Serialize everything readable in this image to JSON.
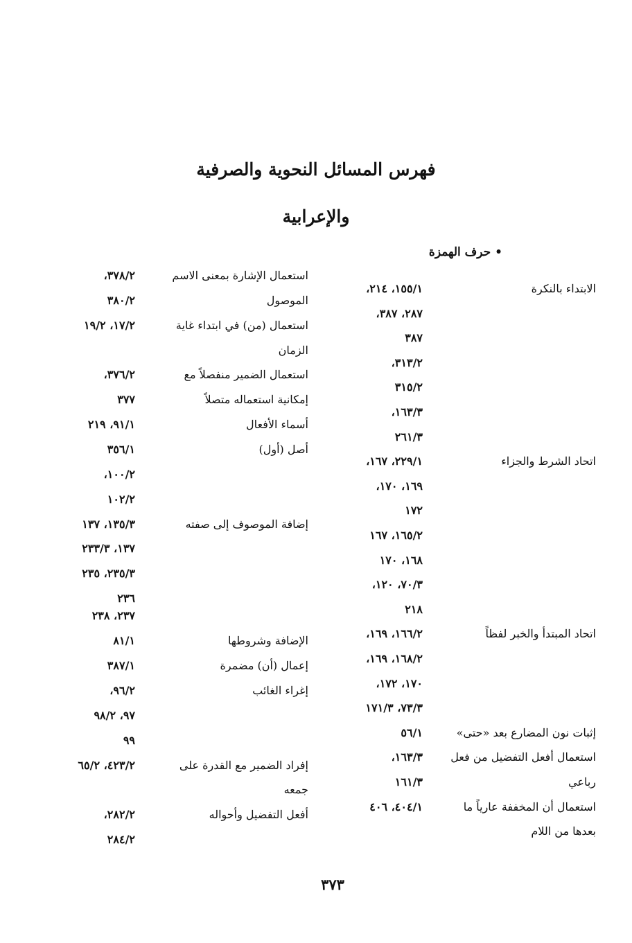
{
  "title_line1": "فهرس المسائل النحوية والصرفية",
  "title_line2": "والإعرابية",
  "section_marker": "•",
  "section_heading": "حرف الهمزة",
  "right_column": [
    {
      "label": "الابتداء بالنكرة",
      "refs": "١٥٥/١، ٢١٤،"
    },
    {
      "label": "",
      "refs": "٢٨٧، ٣٨٧،"
    },
    {
      "label": "",
      "refs": "٣٨٧"
    },
    {
      "label": "",
      "refs": "٣١٣/٢،"
    },
    {
      "label": "",
      "refs": "٣١٥/٢"
    },
    {
      "label": "",
      "refs": "١٦٣/٣،"
    },
    {
      "label": "",
      "refs": "٢٦١/٣"
    },
    {
      "label": "اتحاد الشرط والجزاء",
      "refs": "٢٢٩/١، ١٦٧،"
    },
    {
      "label": "",
      "refs": "١٦٩، ١٧٠،"
    },
    {
      "label": "",
      "refs": "١٧٢"
    },
    {
      "label": "",
      "refs": "١٦٥/٢، ١٦٧"
    },
    {
      "label": "",
      "refs": "١٦٨، ١٧٠"
    },
    {
      "label": "",
      "refs": "٧٠/٣، ١٢٠،"
    },
    {
      "label": "",
      "refs": "٢١٨"
    },
    {
      "label": "اتحاد المبتدأ والخبر لفظاً",
      "refs": "١٦٦/٢، ١٦٩،"
    },
    {
      "label": "",
      "refs": "١٦٨/٢، ١٦٩،"
    },
    {
      "label": "",
      "refs": "١٧٠، ١٧٢،"
    },
    {
      "label": "",
      "refs": "٧٣/٣، ١٧١/٣"
    },
    {
      "label": "إثبات نون المضارع بعد «حتى»",
      "refs": "٥٦/١"
    },
    {
      "label": "استعمال أفعل التفضيل من فعل",
      "refs": "١٦٣/٣،"
    },
    {
      "label": "رباعي",
      "refs": "١٦١/٣"
    },
    {
      "label": "استعمال أن المخففة عارياً ما",
      "refs": "٤٠٤/١، ٤٠٦"
    },
    {
      "label": "بعدها من اللام",
      "refs": ""
    }
  ],
  "left_column": [
    {
      "label": "استعمال الإشارة بمعنى الاسم",
      "refs": "٣٧٨/٢،"
    },
    {
      "label": "الموصول",
      "refs": "٣٨٠/٢"
    },
    {
      "label": "استعمال (من) في ابتداء غاية",
      "refs": "١٧/٢، ١٩/٢"
    },
    {
      "label": "الزمان",
      "refs": ""
    },
    {
      "label": "استعمال الضمير منفصلاً مع",
      "refs": "٣٧٦/٢،"
    },
    {
      "label": "إمكانية استعماله متصلاً",
      "refs": "٣٧٧"
    },
    {
      "label": "أسماء الأفعال",
      "refs": "٩١/١، ٢١٩"
    },
    {
      "label": "أصل (أول)",
      "refs": "٣٥٦/١"
    },
    {
      "label": "",
      "refs": "١٠٠/٢،"
    },
    {
      "label": "",
      "refs": "١٠٢/٢"
    },
    {
      "label": "إضافة الموصوف إلى صفته",
      "refs": "١٣٥/٣، ١٣٧"
    },
    {
      "label": "",
      "refs": "١٣٧، ٢٣٣/٣"
    },
    {
      "label": "",
      "refs": "٢٣٥/٣، ٢٣٥"
    },
    {
      "label": "",
      "refs": "٢٣٦"
    },
    {
      "label": "",
      "refs": "٢٣٧، ٢٣٨"
    },
    {
      "label": "الإضافة وشروطها",
      "refs": "٨١/١"
    },
    {
      "label": "إعمال (أن) مضمرة",
      "refs": "٣٨٧/١"
    },
    {
      "label": "إغراء الغائب",
      "refs": "٩٦/٢،"
    },
    {
      "label": "",
      "refs": "٩٧، ٩٨/٢"
    },
    {
      "label": "",
      "refs": "٩٩"
    },
    {
      "label": "إفراد الضمير مع القدرة على",
      "refs": "٤٢٣/٢، ٦٥/٢"
    },
    {
      "label": "جمعه",
      "refs": ""
    },
    {
      "label": "أفعل التفضيل وأحواله",
      "refs": "٢٨٢/٢،"
    },
    {
      "label": "",
      "refs": "٢٨٤/٢"
    }
  ],
  "page_number": "٣٧٣"
}
